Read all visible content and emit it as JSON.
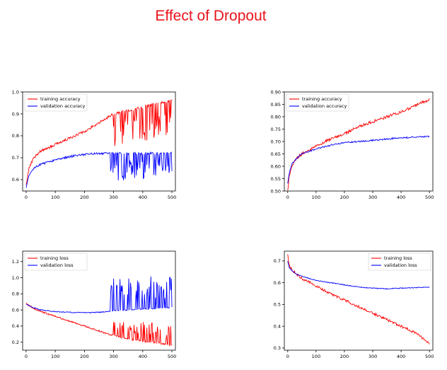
{
  "page": {
    "title": "Effect of Dropout"
  },
  "colors": {
    "title": "#e8141b",
    "training": "#ff0000",
    "validation": "#0000ff"
  },
  "chart_data": [
    {
      "type": "line",
      "title": "",
      "xlabel": "",
      "ylabel": "",
      "xlim": [
        -12,
        512
      ],
      "ylim": [
        0.548,
        1.0
      ],
      "xticks": [
        0,
        100,
        200,
        300,
        400,
        500
      ],
      "yticks": [
        0.6,
        0.7,
        0.8,
        0.9,
        1.0
      ],
      "ytick_labels": [
        "0.6",
        "0.7",
        "0.8",
        "0.9",
        "1.0"
      ],
      "grid": false,
      "legend": "top-left",
      "series": [
        {
          "name": "training accuracy",
          "color": "#ff0000",
          "x": [
            0,
            10,
            25,
            50,
            100,
            150,
            200,
            250,
            300,
            330,
            360,
            400,
            450,
            500
          ],
          "y": [
            0.58,
            0.65,
            0.7,
            0.73,
            0.76,
            0.79,
            0.82,
            0.86,
            0.9,
            0.91,
            0.92,
            0.93,
            0.95,
            0.96
          ],
          "noise": 0.006,
          "spikes": {
            "from": 300,
            "depth": 0.16,
            "prob": 0.35
          }
        },
        {
          "name": "validation accuracy",
          "color": "#0000ff",
          "x": [
            0,
            10,
            25,
            50,
            100,
            150,
            200,
            250,
            300,
            350,
            400,
            450,
            500
          ],
          "y": [
            0.56,
            0.62,
            0.65,
            0.67,
            0.69,
            0.705,
            0.715,
            0.72,
            0.72,
            0.72,
            0.72,
            0.72,
            0.72
          ],
          "noise": 0.005,
          "spikes": {
            "from": 290,
            "depth": 0.12,
            "prob": 0.4
          }
        }
      ]
    },
    {
      "type": "line",
      "title": "",
      "xlabel": "",
      "ylabel": "",
      "xlim": [
        -12,
        512
      ],
      "ylim": [
        0.5,
        0.9
      ],
      "xticks": [
        0,
        100,
        200,
        300,
        400,
        500
      ],
      "yticks": [
        0.5,
        0.55,
        0.6,
        0.65,
        0.7,
        0.75,
        0.8,
        0.85,
        0.9
      ],
      "ytick_labels": [
        "0.50",
        "0.55",
        "0.60",
        "0.65",
        "0.70",
        "0.75",
        "0.80",
        "0.85",
        "0.90"
      ],
      "grid": false,
      "legend": "top-left",
      "series": [
        {
          "name": "training accuracy",
          "color": "#ff0000",
          "x": [
            0,
            5,
            15,
            30,
            50,
            100,
            150,
            200,
            250,
            300,
            350,
            400,
            450,
            500
          ],
          "y": [
            0.5,
            0.56,
            0.6,
            0.63,
            0.65,
            0.68,
            0.71,
            0.73,
            0.76,
            0.78,
            0.8,
            0.82,
            0.845,
            0.87
          ],
          "noise": 0.006
        },
        {
          "name": "validation accuracy",
          "color": "#0000ff",
          "x": [
            0,
            5,
            15,
            30,
            50,
            100,
            150,
            200,
            250,
            300,
            350,
            400,
            450,
            500
          ],
          "y": [
            0.53,
            0.57,
            0.61,
            0.63,
            0.65,
            0.67,
            0.685,
            0.695,
            0.7,
            0.705,
            0.71,
            0.715,
            0.718,
            0.72
          ],
          "noise": 0.003
        }
      ]
    },
    {
      "type": "line",
      "title": "",
      "xlabel": "",
      "ylabel": "",
      "xlim": [
        -12,
        512
      ],
      "ylim": [
        0.1,
        1.33
      ],
      "xticks": [
        0,
        100,
        200,
        300,
        400,
        500
      ],
      "yticks": [
        0.2,
        0.4,
        0.6,
        0.8,
        1.0,
        1.2
      ],
      "ytick_labels": [
        "0.2",
        "0.4",
        "0.6",
        "0.8",
        "1.0",
        "1.2"
      ],
      "grid": false,
      "legend": "top-left",
      "series": [
        {
          "name": "training loss",
          "color": "#ff0000",
          "x": [
            0,
            25,
            50,
            100,
            150,
            200,
            250,
            300,
            350,
            400,
            450,
            500
          ],
          "y": [
            0.68,
            0.62,
            0.58,
            0.52,
            0.46,
            0.4,
            0.34,
            0.28,
            0.24,
            0.21,
            0.19,
            0.16
          ],
          "noise": 0.01,
          "spikes": {
            "from": 300,
            "depth": -0.25,
            "prob": 0.35
          }
        },
        {
          "name": "validation loss",
          "color": "#0000ff",
          "x": [
            0,
            25,
            50,
            100,
            150,
            200,
            250,
            300,
            350,
            400,
            450,
            500
          ],
          "y": [
            0.67,
            0.63,
            0.6,
            0.58,
            0.57,
            0.565,
            0.57,
            0.59,
            0.6,
            0.61,
            0.62,
            0.63
          ],
          "noise": 0.006,
          "spikes": {
            "from": 290,
            "depth": -0.4,
            "prob": 0.4
          }
        }
      ]
    },
    {
      "type": "line",
      "title": "",
      "xlabel": "",
      "ylabel": "",
      "xlim": [
        -12,
        512
      ],
      "ylim": [
        0.29,
        0.745
      ],
      "xticks": [
        0,
        100,
        200,
        300,
        400,
        500
      ],
      "yticks": [
        0.3,
        0.4,
        0.5,
        0.6,
        0.7
      ],
      "ytick_labels": [
        "0.3",
        "0.4",
        "0.5",
        "0.6",
        "0.7"
      ],
      "grid": false,
      "legend": "top-right",
      "series": [
        {
          "name": "training loss",
          "color": "#ff0000",
          "x": [
            0,
            5,
            15,
            30,
            50,
            100,
            150,
            200,
            250,
            300,
            350,
            400,
            450,
            500
          ],
          "y": [
            0.73,
            0.68,
            0.66,
            0.64,
            0.62,
            0.585,
            0.55,
            0.52,
            0.49,
            0.46,
            0.43,
            0.4,
            0.37,
            0.32
          ],
          "noise": 0.006
        },
        {
          "name": "validation loss",
          "color": "#0000ff",
          "x": [
            0,
            5,
            15,
            30,
            50,
            100,
            150,
            200,
            250,
            300,
            350,
            400,
            450,
            500
          ],
          "y": [
            0.7,
            0.67,
            0.655,
            0.64,
            0.63,
            0.61,
            0.6,
            0.59,
            0.58,
            0.575,
            0.572,
            0.575,
            0.577,
            0.58
          ],
          "noise": 0.002
        }
      ]
    }
  ]
}
